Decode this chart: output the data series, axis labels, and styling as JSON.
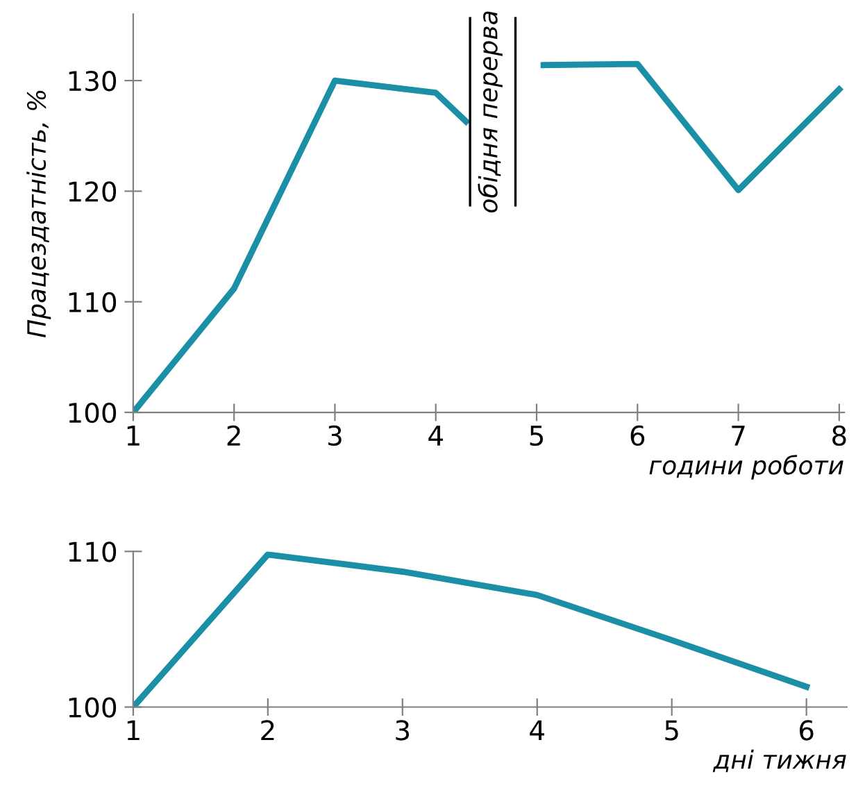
{
  "chart_data": [
    {
      "type": "line",
      "ylabel": "Працездатність, %",
      "xlabel": "години роботи",
      "xlim": [
        1,
        8.05
      ],
      "ylim": [
        100,
        136
      ],
      "xticks": [
        1,
        2,
        3,
        4,
        5,
        6,
        7,
        8
      ],
      "yticks": [
        100,
        110,
        120,
        130
      ],
      "grid": false,
      "legend": false,
      "marker": "none",
      "line_style": "solid",
      "series": [
        {
          "color": "#1a8fa6",
          "x": [
            1,
            2,
            3,
            4,
            4.3,
            4.7,
            5.07,
            6,
            7,
            8
          ],
          "values": [
            100,
            111.2,
            130,
            128.9,
            126.3,
            null,
            131.4,
            131.5,
            120.1,
            129.2
          ]
        }
      ],
      "ref_lines": [
        {
          "axis": "x",
          "value": 4.34,
          "label": "обідня перерва",
          "color": "#000000"
        },
        {
          "axis": "x",
          "value": 4.79,
          "color": "#000000"
        }
      ]
    },
    {
      "type": "line",
      "xlabel": "дні тижня",
      "xlim": [
        1,
        6.3
      ],
      "ylim": [
        100,
        110
      ],
      "xticks": [
        1,
        2,
        3,
        4,
        5,
        6
      ],
      "yticks": [
        100,
        110
      ],
      "grid": false,
      "legend": false,
      "marker": "none",
      "line_style": "solid",
      "series": [
        {
          "color": "#1a8fa6",
          "x": [
            1,
            2,
            3,
            4,
            5,
            6
          ],
          "values": [
            100,
            109.8,
            108.7,
            107.2,
            104.3,
            101.3
          ]
        }
      ]
    }
  ]
}
